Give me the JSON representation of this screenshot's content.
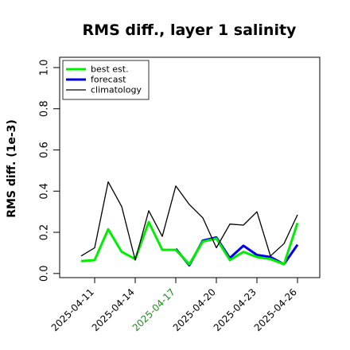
{
  "chart_data": {
    "type": "line",
    "title": "RMS diff., layer 1 salinity",
    "xlabel": "",
    "ylabel": "RMS diff. (1e-3)",
    "ylim": [
      -0.02,
      1.05
    ],
    "yticks": [
      "0.0",
      "0.2",
      "0.4",
      "0.6",
      "0.8",
      "1.0"
    ],
    "ytick_values": [
      0.0,
      0.2,
      0.4,
      0.6,
      0.8,
      1.0
    ],
    "x": [
      "2025-04-10",
      "2025-04-11",
      "2025-04-12",
      "2025-04-13",
      "2025-04-14",
      "2025-04-15",
      "2025-04-16",
      "2025-04-17",
      "2025-04-18",
      "2025-04-19",
      "2025-04-20",
      "2025-04-21",
      "2025-04-22",
      "2025-04-23",
      "2025-04-24",
      "2025-04-25",
      "2025-04-26"
    ],
    "xticks": [
      {
        "label": "2025-04-11",
        "color": "#000000"
      },
      {
        "label": "2025-04-14",
        "color": "#000000"
      },
      {
        "label": "2025-04-17",
        "color": "#228b22"
      },
      {
        "label": "2025-04-20",
        "color": "#000000"
      },
      {
        "label": "2025-04-23",
        "color": "#000000"
      },
      {
        "label": "2025-04-26",
        "color": "#000000"
      }
    ],
    "grid": false,
    "legend_position": "top-left",
    "series": [
      {
        "name": "best est.",
        "color": "#00ee00",
        "width": 3,
        "values": [
          0.06,
          0.065,
          0.215,
          0.105,
          0.07,
          0.25,
          0.115,
          0.115,
          0.045,
          0.155,
          0.17,
          0.065,
          0.105,
          0.08,
          0.07,
          0.045,
          0.245
        ]
      },
      {
        "name": "forecast",
        "color": "#0000ee",
        "width": 3,
        "values": [
          null,
          null,
          null,
          null,
          null,
          null,
          null,
          0.12,
          0.04,
          0.16,
          0.175,
          0.075,
          0.135,
          0.09,
          0.08,
          0.045,
          0.14
        ]
      },
      {
        "name": "climatology",
        "color": "#000000",
        "width": 1.3,
        "values": [
          0.085,
          0.125,
          0.445,
          0.325,
          0.065,
          0.305,
          0.18,
          0.425,
          0.335,
          0.27,
          0.125,
          0.24,
          0.235,
          0.3,
          0.085,
          0.145,
          0.285
        ]
      }
    ]
  }
}
